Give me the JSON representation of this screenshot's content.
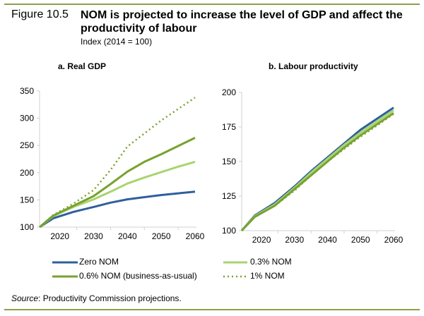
{
  "figure": {
    "label": "Figure 10.5",
    "title": "NOM is projected to increase the level of GDP and affect the productivity of labour",
    "subtitle": "Index (2014 = 100)",
    "source_prefix": "Source",
    "source_text": ": Productivity Commission projections."
  },
  "legend": [
    {
      "name": "Zero NOM",
      "color": "#2e5f9e",
      "style": "solid"
    },
    {
      "name": "0.3% NOM",
      "color": "#a8d46f",
      "style": "solid"
    },
    {
      "name": "0.6% NOM (business-as-usual)",
      "color": "#78a22f",
      "style": "solid"
    },
    {
      "name": "1% NOM",
      "color": "#78a22f",
      "style": "dotted"
    }
  ],
  "chart_data": [
    {
      "type": "line",
      "title": "a. Real GDP",
      "xlabel": "",
      "ylabel": "",
      "x": [
        2014,
        2018,
        2024,
        2030,
        2035,
        2040,
        2045,
        2050,
        2055,
        2060
      ],
      "xticks": [
        2020,
        2030,
        2040,
        2050,
        2060
      ],
      "ylim": [
        100,
        350
      ],
      "yticks": [
        100,
        150,
        200,
        250,
        300,
        350
      ],
      "grid": false,
      "legend_position": "bottom",
      "series": [
        {
          "name": "Zero NOM",
          "values": [
            100,
            116,
            128,
            137,
            145,
            151,
            155,
            159,
            162,
            165
          ]
        },
        {
          "name": "0.3% NOM",
          "values": [
            100,
            120,
            137,
            151,
            165,
            180,
            191,
            201,
            211,
            220
          ]
        },
        {
          "name": "0.6% NOM (business-as-usual)",
          "values": [
            100,
            121,
            139,
            157,
            179,
            202,
            220,
            234,
            249,
            264
          ]
        },
        {
          "name": "1% NOM",
          "values": [
            100,
            122,
            143,
            168,
            205,
            248,
            272,
            296,
            317,
            338
          ]
        }
      ]
    },
    {
      "type": "line",
      "title": "b. Labour productivity",
      "xlabel": "",
      "ylabel": "",
      "x": [
        2014,
        2018,
        2024,
        2030,
        2035,
        2040,
        2045,
        2050,
        2055,
        2060
      ],
      "xticks": [
        2020,
        2030,
        2040,
        2050,
        2060
      ],
      "ylim": [
        100,
        200
      ],
      "yticks": [
        100,
        125,
        150,
        175,
        200
      ],
      "grid": false,
      "legend_position": "bottom",
      "series": [
        {
          "name": "Zero NOM",
          "values": [
            100,
            111,
            120,
            132,
            143,
            153,
            163,
            173,
            181,
            189
          ]
        },
        {
          "name": "0.3% NOM",
          "values": [
            100,
            110.5,
            119,
            131,
            142,
            152,
            162,
            171,
            179,
            187
          ]
        },
        {
          "name": "0.6% NOM (business-as-usual)",
          "values": [
            100,
            110,
            118,
            130,
            140,
            150,
            160,
            169,
            177,
            185
          ]
        },
        {
          "name": "1% NOM",
          "values": [
            100,
            110,
            118,
            129,
            140,
            150,
            159,
            168,
            176,
            184.5
          ]
        }
      ]
    }
  ]
}
